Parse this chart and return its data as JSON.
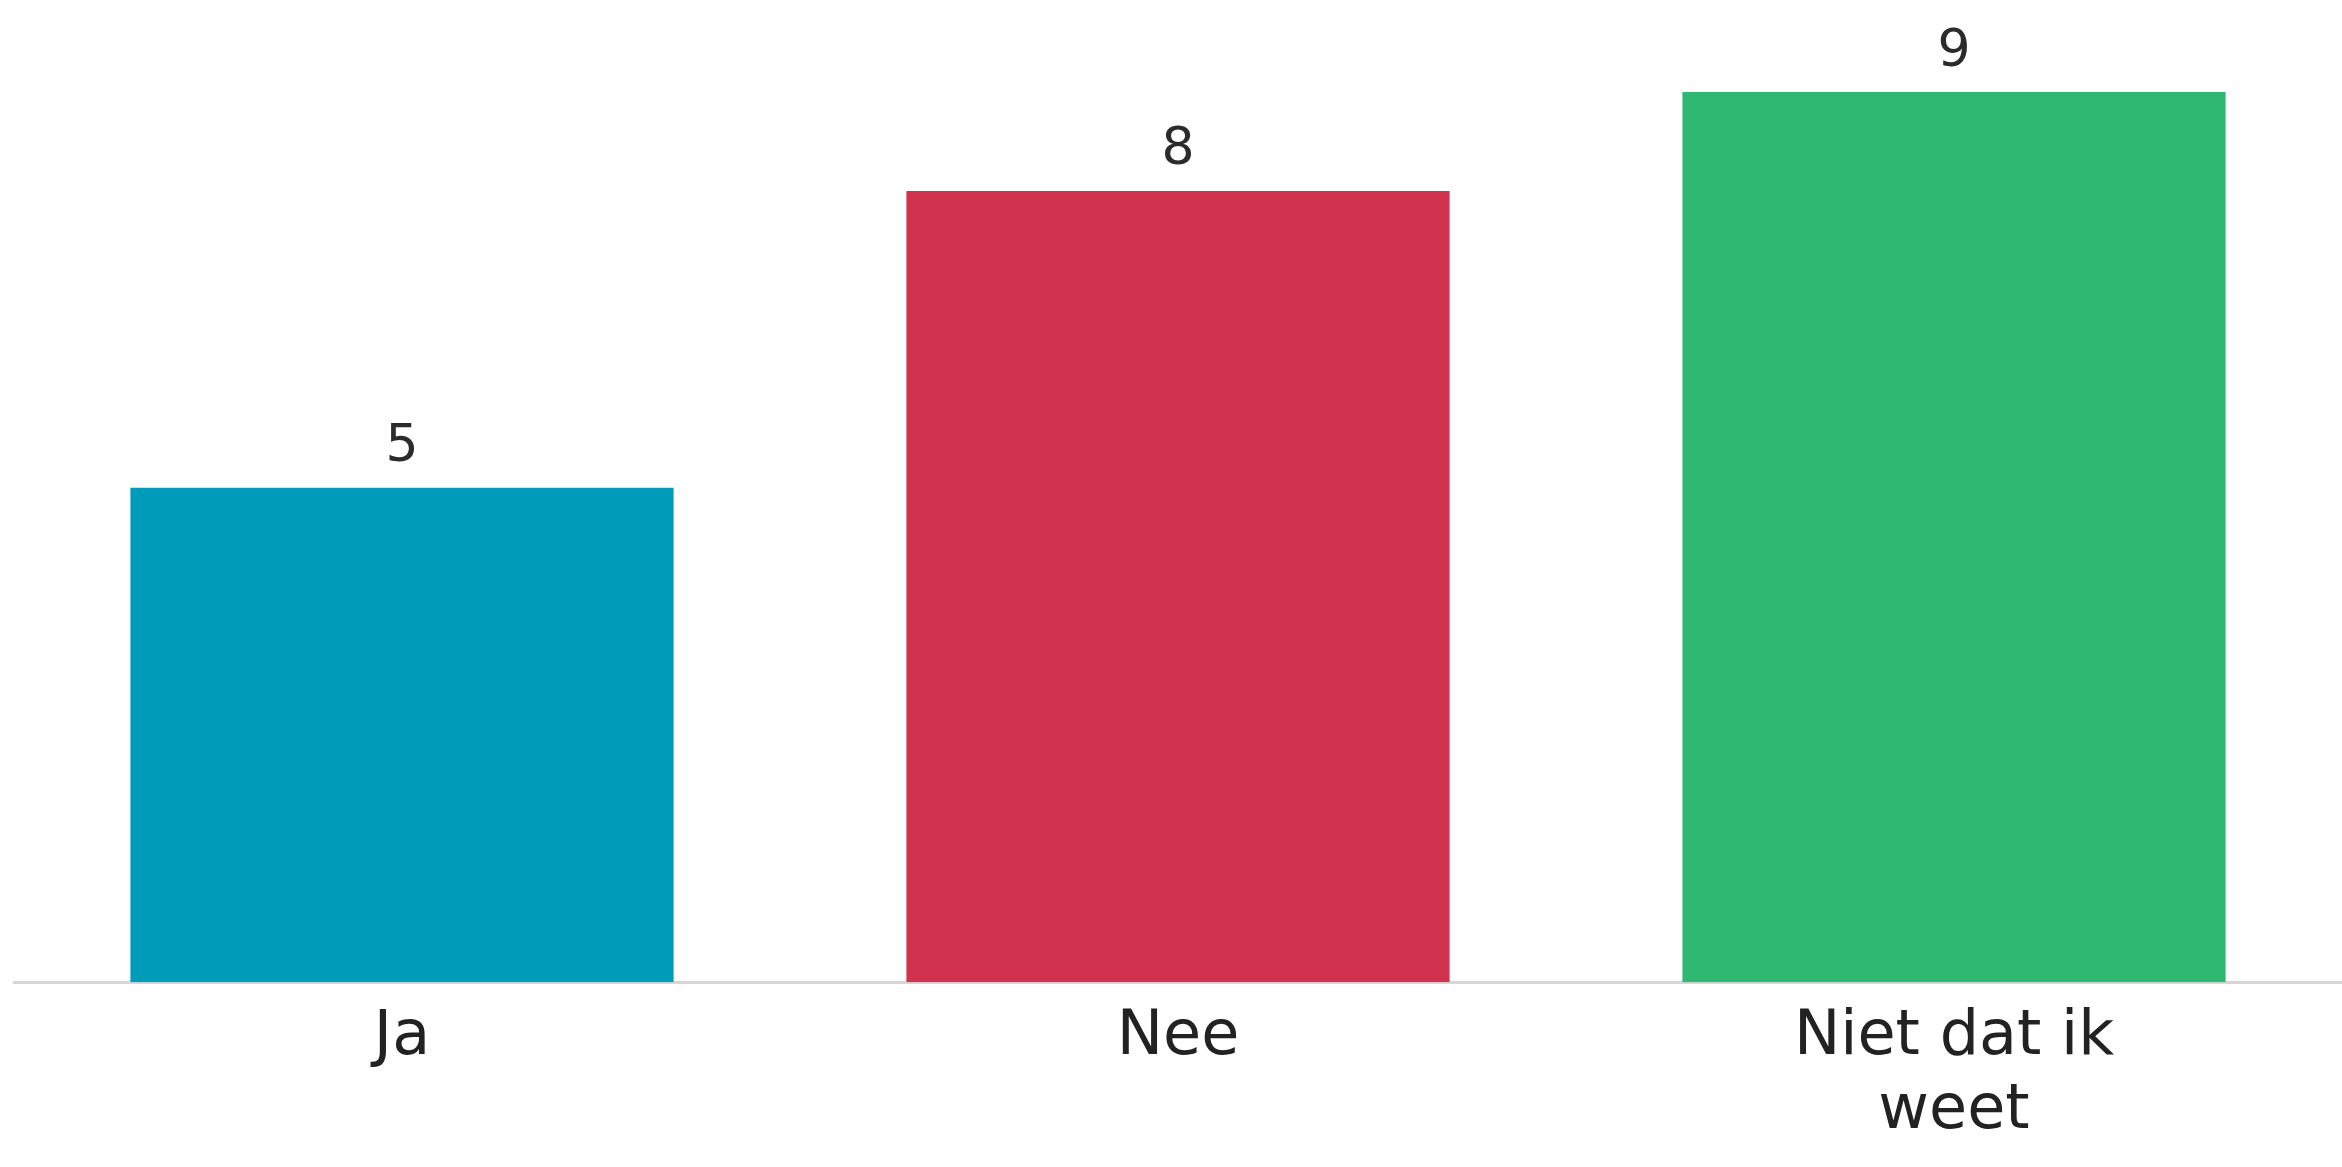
{
  "chart_data": {
    "type": "bar",
    "categories": [
      "Ja",
      "Nee",
      "Niet dat ik weet"
    ],
    "values": [
      5,
      8,
      9
    ],
    "colors": [
      "#009bb9",
      "#d1334f",
      "#2eb872"
    ],
    "data_labels": true,
    "tick_labels": "x",
    "legend": false
  }
}
